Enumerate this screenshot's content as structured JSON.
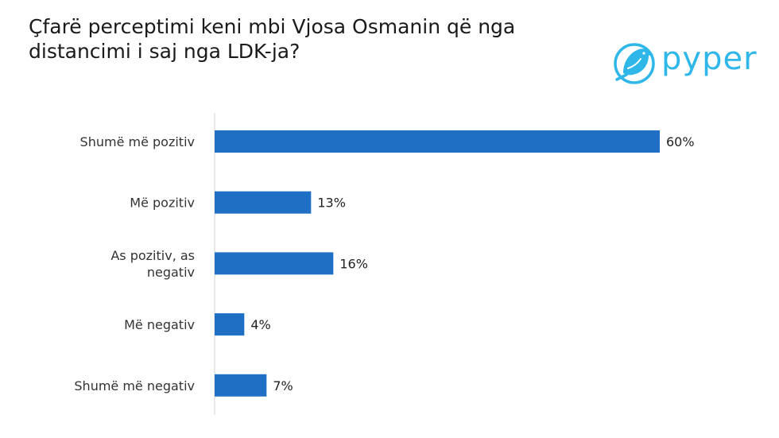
{
  "title_lines": [
    "Çfarë perceptimi keni mbi Vjosa Osmanin që nga",
    "distancimi i saj nga LDK-ja?"
  ],
  "logo": {
    "text": "pyper",
    "icon": "bird-icon",
    "color": "#2fb7ea"
  },
  "chart_data": {
    "type": "bar",
    "orientation": "horizontal",
    "categories": [
      [
        "Shumë më pozitiv"
      ],
      [
        "Më pozitiv"
      ],
      [
        "As pozitiv, as",
        "negativ"
      ],
      [
        "Më negativ"
      ],
      [
        "Shumë më negativ"
      ]
    ],
    "values": [
      60,
      13,
      16,
      4,
      7
    ],
    "value_labels": [
      "60%",
      "13%",
      "16%",
      "4%",
      "7%"
    ],
    "unit": "%",
    "bar_color": "#1f6fc5",
    "axis_color": "#d0d0d0",
    "grid": false,
    "legend": "none"
  }
}
